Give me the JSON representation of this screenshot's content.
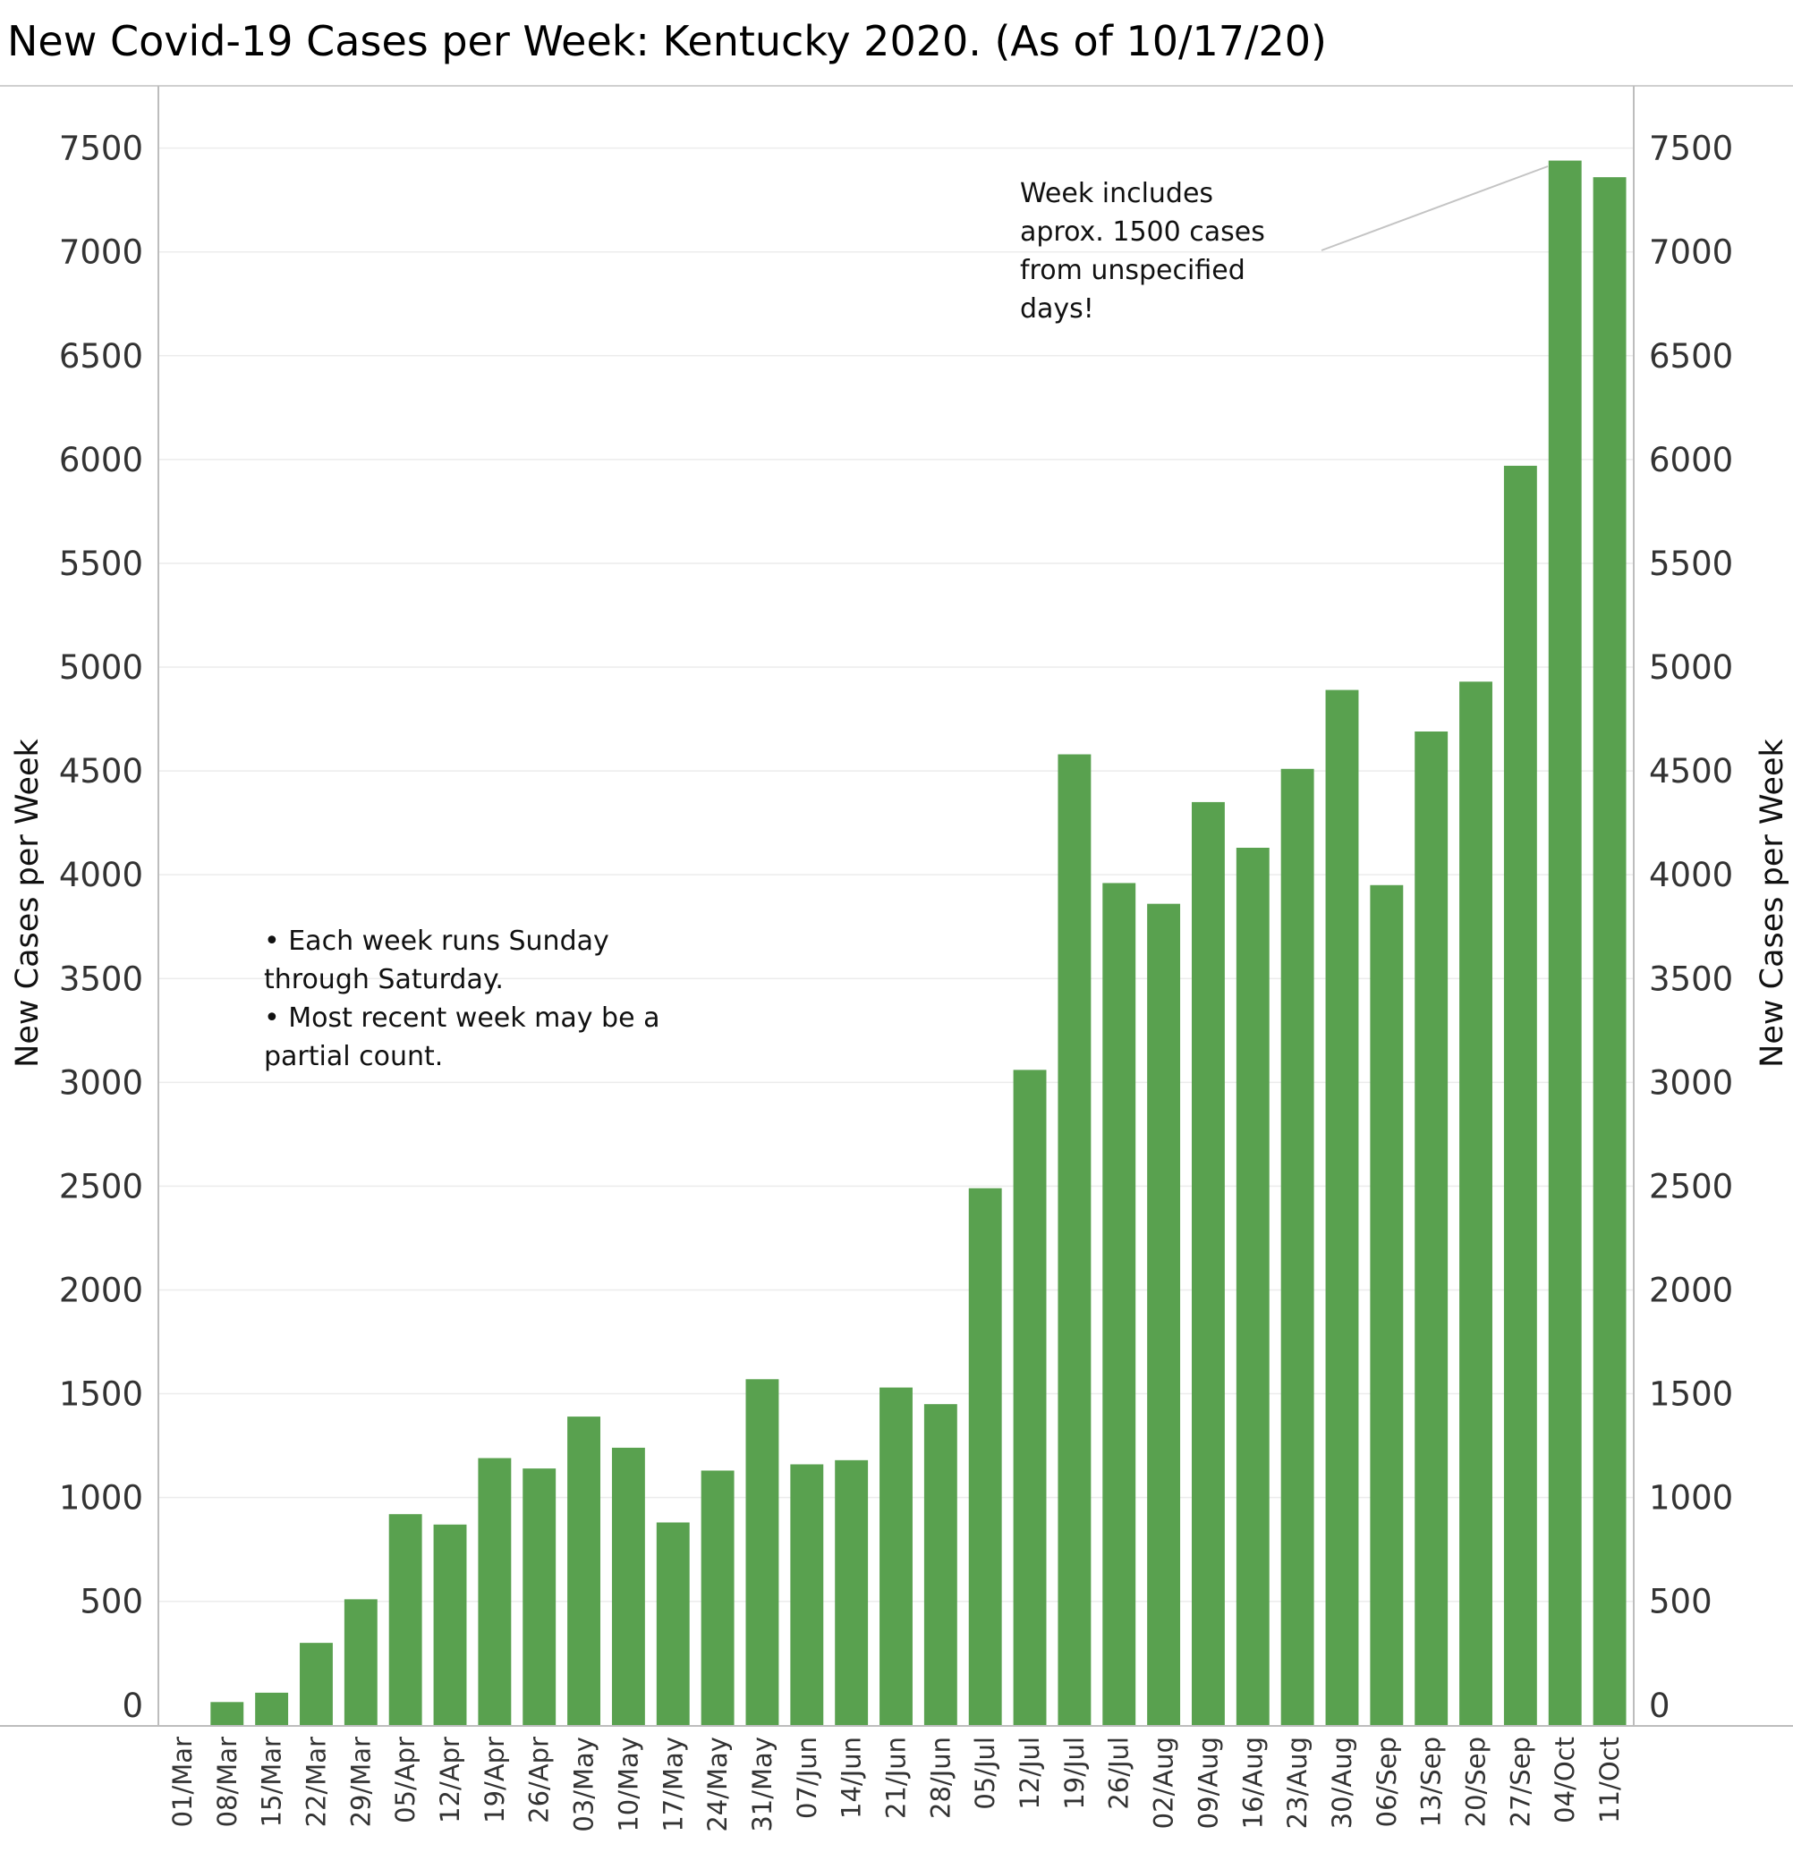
{
  "chart_data": {
    "type": "bar",
    "title": "New Covid-19 Cases per Week:  Kentucky 2020.  (As of 10/17/20)",
    "ylabel": "New Cases per Week",
    "ylabel_right": "New Cases per Week",
    "xlabel": "",
    "ylim": [
      -100,
      7800
    ],
    "yticks": [
      0,
      500,
      1000,
      1500,
      2000,
      2500,
      3000,
      3500,
      4000,
      4500,
      5000,
      5500,
      6000,
      6500,
      7000,
      7500
    ],
    "grid": true,
    "bar_color": "#59A14F",
    "categories": [
      "01/Mar",
      "08/Mar",
      "15/Mar",
      "22/Mar",
      "29/Mar",
      "05/Apr",
      "12/Apr",
      "19/Apr",
      "26/Apr",
      "03/May",
      "10/May",
      "17/May",
      "24/May",
      "31/May",
      "07/Jun",
      "14/Jun",
      "21/Jun",
      "28/Jun",
      "05/Jul",
      "12/Jul",
      "19/Jul",
      "26/Jul",
      "02/Aug",
      "09/Aug",
      "16/Aug",
      "23/Aug",
      "30/Aug",
      "06/Sep",
      "13/Sep",
      "20/Sep",
      "27/Sep",
      "04/Oct",
      "11/Oct"
    ],
    "values": [
      0,
      15,
      60,
      300,
      510,
      920,
      870,
      1190,
      1140,
      1390,
      1240,
      880,
      1130,
      1570,
      1160,
      1180,
      1530,
      1450,
      2490,
      3060,
      4580,
      3960,
      3860,
      4350,
      4130,
      4510,
      4890,
      3950,
      4690,
      4930,
      5970,
      7440,
      7360
    ],
    "annotations": [
      {
        "lines": [
          "• Each week runs Sunday",
          "through Saturday.",
          "• Most recent week may be a",
          "partial count."
        ]
      },
      {
        "lines": [
          "Week includes",
          "aprox. 1500 cases",
          "from unspecified",
          "days!"
        ],
        "target": "04/Oct"
      }
    ]
  }
}
